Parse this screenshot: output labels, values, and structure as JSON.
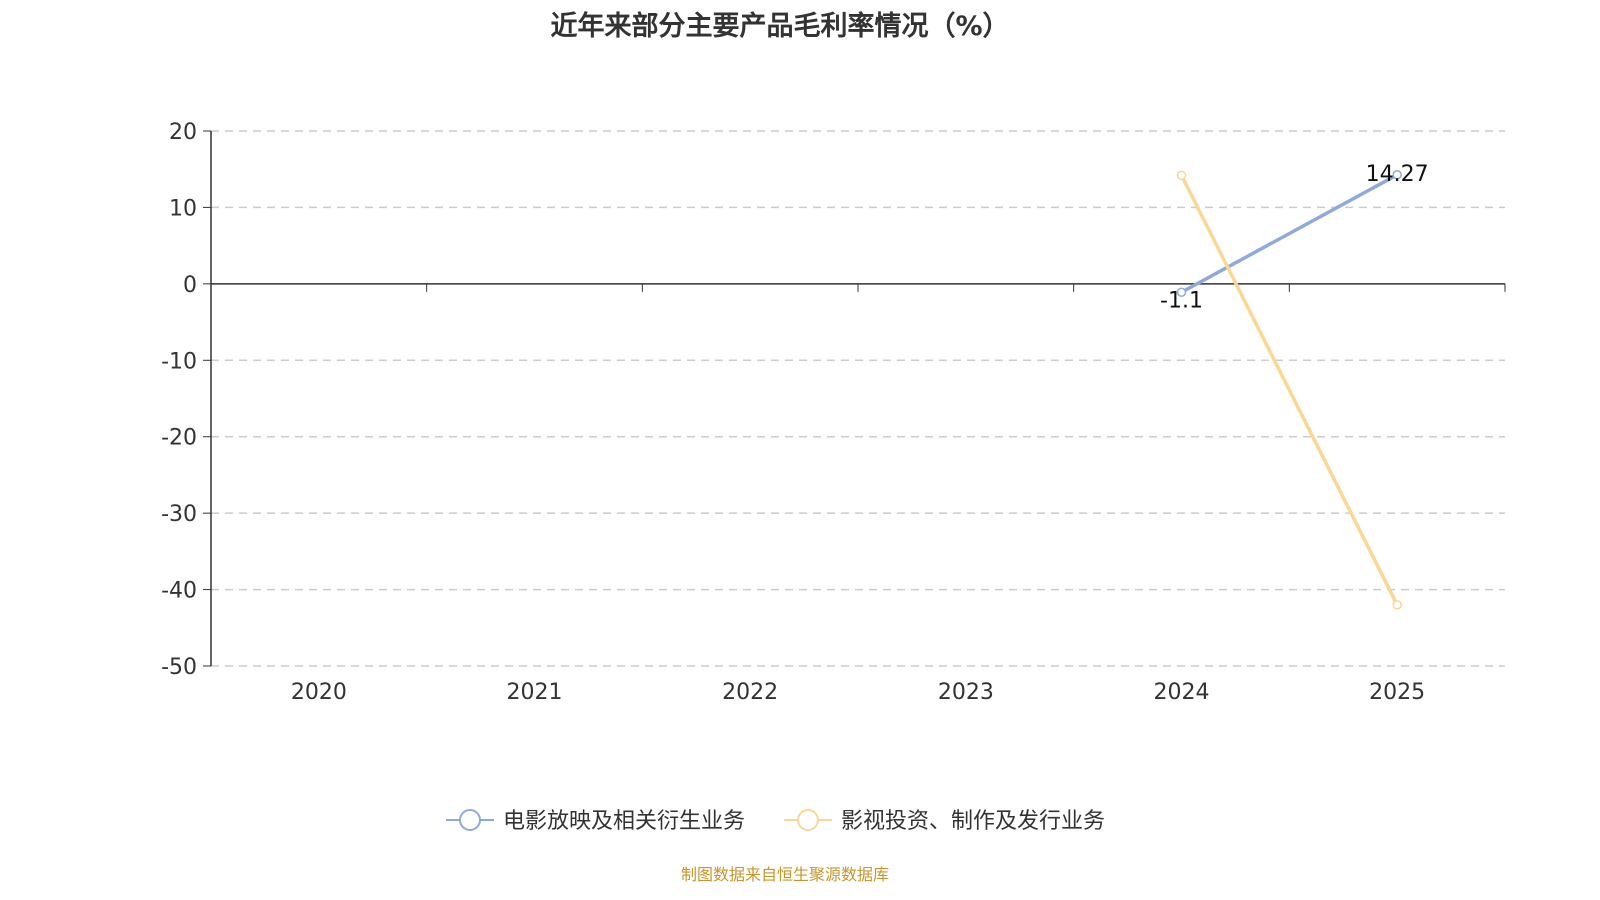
{
  "chart_data": {
    "type": "line",
    "title": "近年来部分主要产品毛利率情况（%）",
    "categories": [
      "2020",
      "2021",
      "2022",
      "2023",
      "2024",
      "2025"
    ],
    "ylim": [
      -50,
      20
    ],
    "yticks": [
      20,
      10,
      0,
      -10,
      -20,
      -30,
      -40,
      -50
    ],
    "grid": true,
    "legend_position": "bottom",
    "series": [
      {
        "name": "电影放映及相关衍生业务",
        "color": "#8eaadb",
        "values": [
          null,
          null,
          null,
          null,
          -1.1,
          14.27
        ],
        "labels": [
          "",
          "",
          "",
          "",
          "-1.1",
          "14.27"
        ]
      },
      {
        "name": "影视投资、制作及发行业务",
        "color": "#fad795",
        "values": [
          null,
          null,
          null,
          null,
          14.2,
          -42.0
        ],
        "labels": [
          "",
          "",
          "",
          "",
          "",
          ""
        ]
      }
    ]
  },
  "source": "制图数据来自恒生聚源数据库"
}
